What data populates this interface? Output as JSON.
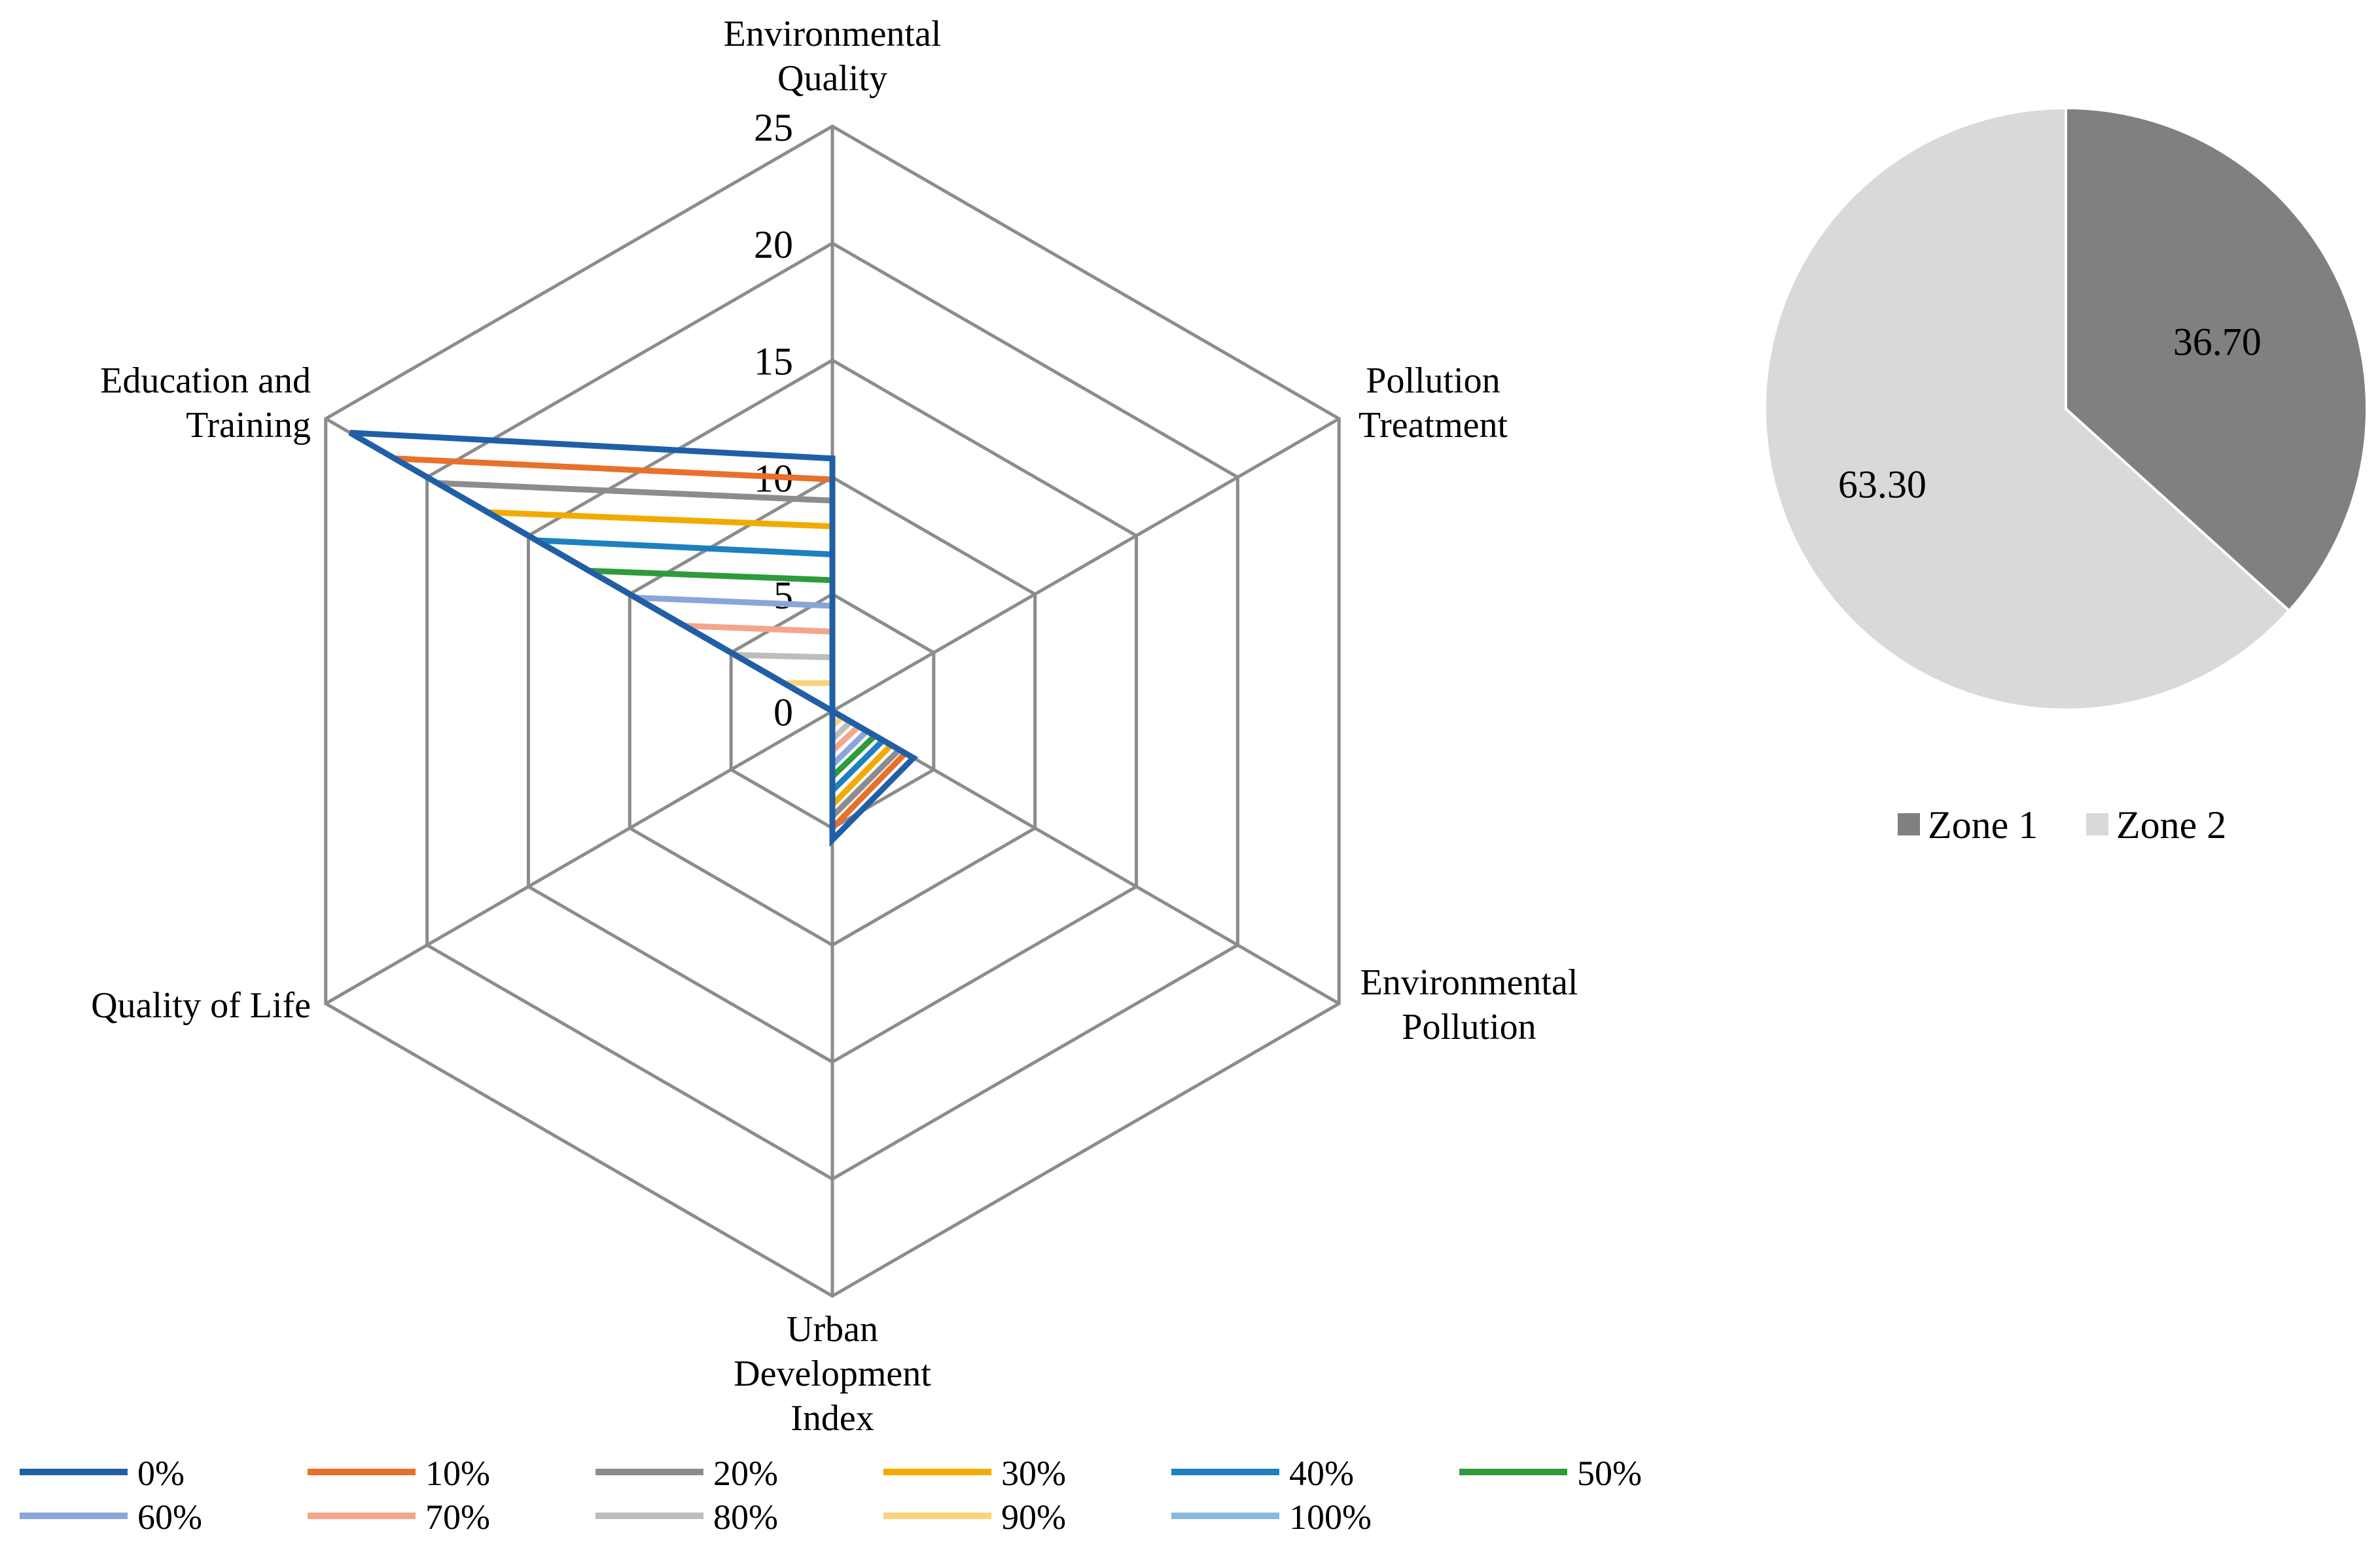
{
  "chart_data": [
    {
      "type": "radar",
      "axes": [
        "Environmental Quality",
        "Pollution Treatment",
        "Environmental Pollution",
        "Urban Development Index",
        "Quality of Life",
        "Education and Training"
      ],
      "axis_labels": [
        [
          "Environmental",
          "Quality"
        ],
        [
          "Pollution",
          "Treatment"
        ],
        [
          "Environmental",
          "Pollution"
        ],
        [
          "Urban",
          "Development",
          "Index"
        ],
        [
          "Quality of Life"
        ],
        [
          "Education and",
          "Training"
        ]
      ],
      "rlim": [
        0,
        25
      ],
      "ticks": [
        "0",
        "5",
        "10",
        "15",
        "20",
        "25"
      ],
      "tick_values": [
        0,
        5,
        10,
        15,
        20,
        25
      ],
      "series": [
        {
          "name": "0%",
          "color": "#1f5fa8",
          "values": [
            10.8,
            0.0,
            4.0,
            5.5,
            0.0,
            23.8
          ]
        },
        {
          "name": "10%",
          "color": "#e8702a",
          "values": [
            9.9,
            0.0,
            3.6,
            5.0,
            0.0,
            21.6
          ]
        },
        {
          "name": "20%",
          "color": "#8c8c8c",
          "values": [
            9.0,
            0.0,
            3.3,
            4.5,
            0.0,
            19.5
          ]
        },
        {
          "name": "30%",
          "color": "#f2aa00",
          "values": [
            7.9,
            0.0,
            2.9,
            4.0,
            0.0,
            17.0
          ]
        },
        {
          "name": "40%",
          "color": "#1e7fc1",
          "values": [
            6.7,
            0.0,
            2.5,
            3.4,
            0.0,
            14.6
          ]
        },
        {
          "name": "50%",
          "color": "#2e9a3c",
          "values": [
            5.6,
            0.0,
            2.1,
            2.8,
            0.0,
            12.0
          ]
        },
        {
          "name": "60%",
          "color": "#8aa6d8",
          "values": [
            4.5,
            0.0,
            1.7,
            2.3,
            0.0,
            9.7
          ]
        },
        {
          "name": "70%",
          "color": "#f4a58a",
          "values": [
            3.4,
            0.0,
            1.3,
            1.7,
            0.0,
            7.3
          ]
        },
        {
          "name": "80%",
          "color": "#bdbdbd",
          "values": [
            2.3,
            0.0,
            0.9,
            1.2,
            0.0,
            4.8
          ]
        },
        {
          "name": "90%",
          "color": "#fcd37a",
          "values": [
            1.2,
            0.0,
            0.5,
            0.6,
            0.0,
            2.4
          ]
        },
        {
          "name": "100%",
          "color": "#8ab8e0",
          "values": [
            0.0,
            0.0,
            0.0,
            0.0,
            0.0,
            0.0
          ]
        }
      ]
    },
    {
      "type": "pie",
      "slices": [
        {
          "name": "Zone 1",
          "value": 36.7,
          "label": "36.70",
          "color": "#808080"
        },
        {
          "name": "Zone 2",
          "value": 63.3,
          "label": "63.30",
          "color": "#d9d9d9"
        }
      ],
      "legend": [
        "Zone 1",
        "Zone 2"
      ]
    }
  ]
}
